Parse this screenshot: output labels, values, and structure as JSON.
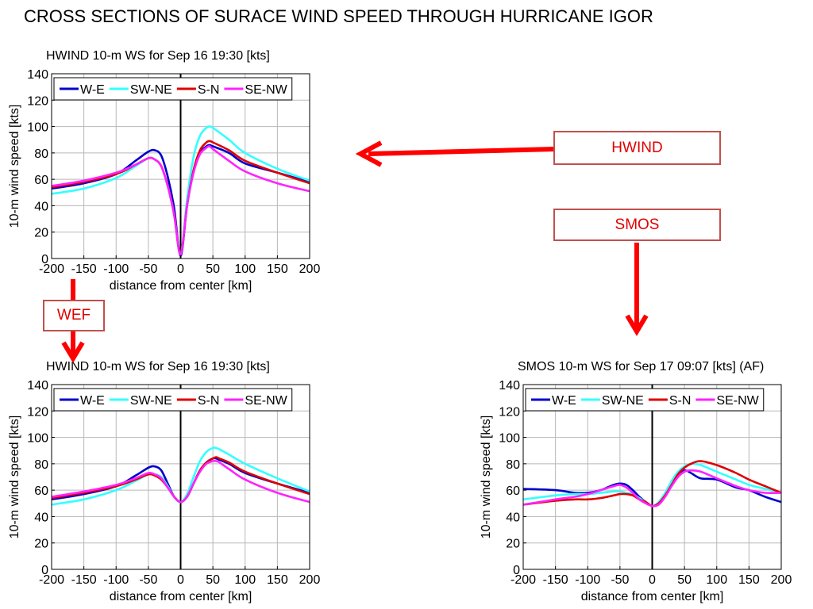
{
  "page_title": "CROSS SECTIONS OF SURACE WIND SPEED THROUGH HURRICANE IGOR",
  "callouts": {
    "hwind": "HWIND",
    "smos": "SMOS",
    "wef": "WEF"
  },
  "series_colors": {
    "W-E": "#0000cc",
    "SW-NE": "#33ffff",
    "S-N": "#dd0000",
    "SE-NW": "#ff22ff"
  },
  "chart_data": [
    {
      "type": "line",
      "title": "HWIND 10-m WS for Sep 16 19:30 [kts]",
      "xlabel": "distance from center [km]",
      "ylabel": "10-m wind speed [kts]",
      "xlim": [
        -200,
        200
      ],
      "ylim": [
        0,
        140
      ],
      "xticks": [
        "-200",
        "-150",
        "-100",
        "-50",
        "0",
        "50",
        "100",
        "150",
        "200"
      ],
      "yticks": [
        "0",
        "20",
        "40",
        "60",
        "80",
        "100",
        "120",
        "140"
      ],
      "grid": true,
      "legend": "top-left",
      "series": [
        {
          "name": "W-E",
          "x": [
            -200,
            -150,
            -100,
            -70,
            -50,
            -40,
            -30,
            -20,
            -10,
            0,
            10,
            20,
            30,
            40,
            45,
            50,
            75,
            100,
            150,
            200
          ],
          "y": [
            53,
            57,
            64,
            74,
            81,
            82,
            78,
            62,
            38,
            2,
            40,
            66,
            80,
            85,
            86,
            85,
            80,
            72,
            65,
            58
          ]
        },
        {
          "name": "SW-NE",
          "x": [
            -200,
            -150,
            -100,
            -70,
            -50,
            -40,
            -30,
            -20,
            -10,
            0,
            10,
            20,
            30,
            40,
            45,
            50,
            75,
            100,
            150,
            200
          ],
          "y": [
            49,
            53,
            61,
            70,
            76,
            75,
            70,
            55,
            33,
            3,
            45,
            77,
            93,
            99,
            100,
            99,
            90,
            80,
            68,
            59
          ]
        },
        {
          "name": "S-N",
          "x": [
            -200,
            -150,
            -100,
            -70,
            -50,
            -40,
            -30,
            -20,
            -10,
            0,
            10,
            20,
            30,
            40,
            45,
            50,
            75,
            100,
            150,
            200
          ],
          "y": [
            54,
            58,
            64,
            71,
            76,
            75,
            70,
            55,
            33,
            3,
            40,
            67,
            82,
            88,
            89,
            88,
            82,
            74,
            65,
            57
          ]
        },
        {
          "name": "SE-NW",
          "x": [
            -200,
            -150,
            -100,
            -70,
            -50,
            -40,
            -30,
            -20,
            -10,
            0,
            10,
            20,
            30,
            40,
            45,
            50,
            75,
            100,
            150,
            200
          ],
          "y": [
            55,
            59,
            65,
            71,
            76,
            75,
            70,
            55,
            33,
            3,
            40,
            65,
            79,
            84,
            85,
            83,
            74,
            66,
            57,
            51
          ]
        }
      ]
    },
    {
      "type": "line",
      "title": "HWIND 10-m WS for Sep 16 19:30 [kts]",
      "xlabel": "distance from center [km]",
      "ylabel": "10-m wind speed [kts]",
      "xlim": [
        -200,
        200
      ],
      "ylim": [
        0,
        140
      ],
      "xticks": [
        "-200",
        "-150",
        "-100",
        "-50",
        "0",
        "50",
        "100",
        "150",
        "200"
      ],
      "yticks": [
        "0",
        "20",
        "40",
        "60",
        "80",
        "100",
        "120",
        "140"
      ],
      "grid": true,
      "legend": "top-left",
      "series": [
        {
          "name": "W-E",
          "x": [
            -200,
            -150,
            -100,
            -70,
            -50,
            -40,
            -30,
            -20,
            -10,
            0,
            10,
            20,
            30,
            40,
            50,
            55,
            60,
            75,
            100,
            150,
            200
          ],
          "y": [
            53,
            57,
            63,
            71,
            77,
            78,
            75,
            65,
            55,
            51,
            55,
            65,
            75,
            81,
            84,
            84,
            83,
            80,
            73,
            65,
            58
          ]
        },
        {
          "name": "SW-NE",
          "x": [
            -200,
            -150,
            -100,
            -70,
            -50,
            -40,
            -30,
            -20,
            -10,
            0,
            10,
            20,
            30,
            40,
            50,
            55,
            60,
            75,
            100,
            150,
            200
          ],
          "y": [
            49,
            53,
            60,
            67,
            72,
            72,
            70,
            63,
            55,
            51,
            57,
            70,
            82,
            89,
            92,
            92,
            91,
            87,
            80,
            69,
            59
          ]
        },
        {
          "name": "S-N",
          "x": [
            -200,
            -150,
            -100,
            -70,
            -50,
            -40,
            -30,
            -20,
            -10,
            0,
            10,
            20,
            30,
            40,
            50,
            55,
            60,
            75,
            100,
            150,
            200
          ],
          "y": [
            54,
            58,
            63,
            68,
            72,
            71,
            68,
            62,
            55,
            51,
            55,
            65,
            75,
            81,
            84,
            85,
            84,
            81,
            74,
            65,
            57
          ]
        },
        {
          "name": "SE-NW",
          "x": [
            -200,
            -150,
            -100,
            -70,
            -50,
            -40,
            -30,
            -20,
            -10,
            0,
            10,
            20,
            30,
            40,
            50,
            55,
            60,
            75,
            100,
            150,
            200
          ],
          "y": [
            55,
            59,
            64,
            69,
            73,
            72,
            69,
            62,
            55,
            51,
            55,
            65,
            74,
            80,
            82,
            82,
            81,
            76,
            68,
            58,
            51
          ]
        }
      ]
    },
    {
      "type": "line",
      "title": "SMOS 10-m WS for Sep 17 09:07 [kts] (AF)",
      "xlabel": "distance from center [km]",
      "ylabel": "10-m wind speed [kts]",
      "xlim": [
        -200,
        200
      ],
      "ylim": [
        0,
        140
      ],
      "xticks": [
        "-200",
        "-150",
        "-100",
        "-50",
        "0",
        "50",
        "100",
        "150",
        "200"
      ],
      "yticks": [
        "0",
        "20",
        "40",
        "60",
        "80",
        "100",
        "120",
        "140"
      ],
      "grid": true,
      "legend": "top-left",
      "series": [
        {
          "name": "W-E",
          "x": [
            -200,
            -150,
            -120,
            -100,
            -80,
            -60,
            -50,
            -40,
            -30,
            -20,
            -10,
            0,
            10,
            20,
            30,
            40,
            50,
            60,
            75,
            100,
            130,
            150,
            175,
            200
          ],
          "y": [
            61,
            60,
            58,
            58,
            60,
            64,
            65,
            64,
            60,
            55,
            51,
            48,
            50,
            56,
            64,
            71,
            75,
            73,
            69,
            68,
            62,
            60,
            55,
            51
          ]
        },
        {
          "name": "SW-NE",
          "x": [
            -200,
            -150,
            -120,
            -100,
            -80,
            -60,
            -50,
            -40,
            -30,
            -20,
            -10,
            0,
            10,
            20,
            30,
            40,
            50,
            60,
            75,
            100,
            130,
            150,
            175,
            200
          ],
          "y": [
            53,
            56,
            57,
            57,
            58,
            59,
            59,
            58,
            57,
            54,
            51,
            48,
            51,
            58,
            67,
            74,
            78,
            80,
            79,
            74,
            68,
            64,
            61,
            58
          ]
        },
        {
          "name": "S-N",
          "x": [
            -200,
            -150,
            -120,
            -100,
            -80,
            -60,
            -50,
            -40,
            -30,
            -20,
            -10,
            0,
            10,
            20,
            30,
            40,
            50,
            60,
            75,
            100,
            130,
            150,
            175,
            200
          ],
          "y": [
            49,
            52,
            53,
            53,
            54,
            56,
            57,
            57,
            56,
            53,
            51,
            48,
            50,
            56,
            64,
            72,
            77,
            80,
            82,
            79,
            73,
            68,
            63,
            58
          ]
        },
        {
          "name": "SE-NW",
          "x": [
            -200,
            -150,
            -120,
            -100,
            -80,
            -60,
            -50,
            -40,
            -30,
            -20,
            -10,
            0,
            10,
            20,
            30,
            40,
            50,
            60,
            75,
            100,
            130,
            150,
            175,
            200
          ],
          "y": [
            49,
            53,
            55,
            57,
            60,
            63,
            64,
            62,
            58,
            53,
            50,
            48,
            49,
            55,
            63,
            70,
            74,
            75,
            74,
            69,
            63,
            60,
            58,
            58
          ]
        }
      ]
    }
  ]
}
